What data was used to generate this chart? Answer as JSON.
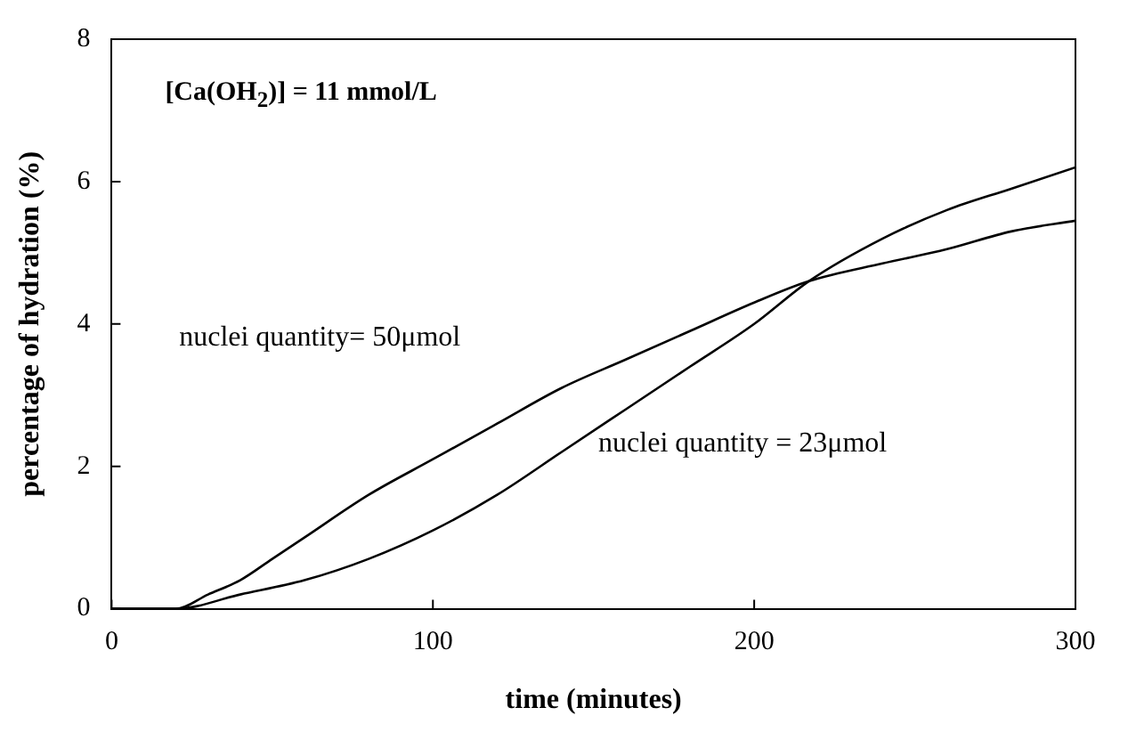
{
  "chart_data": {
    "type": "line",
    "xlabel": "time (minutes)",
    "ylabel": "percentage of hydration (%)",
    "annotations": [
      "[Ca(OH$_{2}$)] = 11 mmol/L"
    ],
    "series": [
      {
        "name": "nuclei quantity= 50μmol",
        "color": "#000000",
        "x": [
          0,
          20,
          30,
          40,
          50,
          60,
          80,
          100,
          120,
          140,
          160,
          180,
          200,
          217,
          240,
          260,
          280,
          300
        ],
        "values": [
          0,
          0,
          0.2,
          0.4,
          0.7,
          1.0,
          1.6,
          2.1,
          2.6,
          3.1,
          3.5,
          3.9,
          4.3,
          4.6,
          4.85,
          5.05,
          5.3,
          5.45
        ]
      },
      {
        "name": "nuclei quantity = 23μmol",
        "color": "#000000",
        "x": [
          0,
          20,
          40,
          60,
          80,
          100,
          120,
          140,
          160,
          180,
          200,
          217,
          240,
          260,
          280,
          300
        ],
        "values": [
          0,
          0,
          0.2,
          0.4,
          0.7,
          1.1,
          1.6,
          2.2,
          2.8,
          3.4,
          4.0,
          4.6,
          5.2,
          5.6,
          5.9,
          6.2
        ]
      }
    ],
    "xlim": [
      0,
      300
    ],
    "xticks": [
      0,
      100,
      200,
      300
    ],
    "ylim": [
      0,
      8
    ],
    "yticks": [
      0,
      2,
      4,
      6,
      8
    ],
    "grid": false,
    "legend": false,
    "marker": "none",
    "line_style": "solid"
  }
}
